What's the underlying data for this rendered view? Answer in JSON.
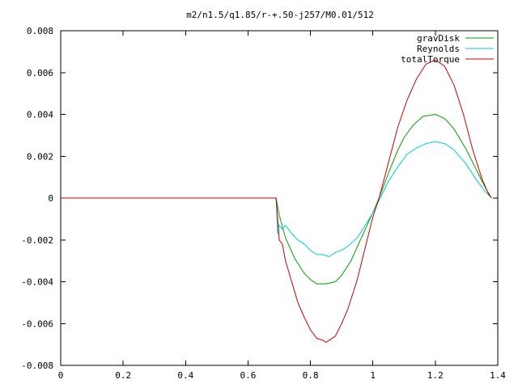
{
  "chart_data": {
    "type": "line",
    "title": "m2/n1.5/q1.85/r-+.50-j257/M0.01/512",
    "xlim": [
      0,
      1.4
    ],
    "ylim": [
      -0.008,
      0.008
    ],
    "xticks": [
      0,
      0.2,
      0.4,
      0.6,
      0.8,
      1,
      1.2,
      1.4
    ],
    "xtick_labels": [
      "0",
      "0.2",
      "0.4",
      "0.6",
      "0.8",
      "1",
      "1.2",
      "1.4"
    ],
    "yticks": [
      -0.008,
      -0.006,
      -0.004,
      -0.002,
      0,
      0.002,
      0.004,
      0.006,
      0.008
    ],
    "ytick_labels": [
      "-0.008",
      "-0.006",
      "-0.004",
      "-0.002",
      "0",
      "0.002",
      "0.004",
      "0.006",
      "0.008"
    ],
    "grid": false,
    "legend": "top-right",
    "series": [
      {
        "name": "gravDisk",
        "color": "#00a000",
        "x": [
          0,
          0.69,
          0.7,
          0.72,
          0.75,
          0.78,
          0.8,
          0.82,
          0.85,
          0.88,
          0.9,
          0.93,
          0.96,
          1.0,
          1.02,
          1.05,
          1.08,
          1.1,
          1.13,
          1.16,
          1.2,
          1.23,
          1.26,
          1.3,
          1.33,
          1.36,
          1.38
        ],
        "y": [
          0,
          0,
          -0.0008,
          -0.0019,
          -0.0029,
          -0.0036,
          -0.0039,
          -0.0041,
          -0.0041,
          -0.004,
          -0.0037,
          -0.003,
          -0.002,
          -0.0007,
          0.0,
          0.0012,
          0.0023,
          0.0029,
          0.0035,
          0.0039,
          0.004,
          0.0038,
          0.0033,
          0.0023,
          0.0014,
          0.0005,
          0.0
        ]
      },
      {
        "name": "Reynolds",
        "color": "#00cccc",
        "x": [
          0,
          0.69,
          0.695,
          0.7,
          0.71,
          0.72,
          0.74,
          0.76,
          0.78,
          0.8,
          0.82,
          0.84,
          0.86,
          0.88,
          0.9,
          0.92,
          0.95,
          0.98,
          1.0,
          1.02,
          1.05,
          1.08,
          1.11,
          1.14,
          1.17,
          1.2,
          1.23,
          1.26,
          1.3,
          1.33,
          1.36,
          1.38
        ],
        "y": [
          0,
          0,
          -0.0017,
          -0.0013,
          -0.0015,
          -0.0013,
          -0.0017,
          -0.002,
          -0.0022,
          -0.0025,
          -0.0027,
          -0.0027,
          -0.0028,
          -0.0026,
          -0.0025,
          -0.0023,
          -0.0019,
          -0.0012,
          -0.0007,
          -0.0001,
          0.0008,
          0.0015,
          0.0021,
          0.0024,
          0.0026,
          0.0027,
          0.0026,
          0.0023,
          0.0016,
          0.0009,
          0.0003,
          0.0
        ]
      },
      {
        "name": "totalTorque",
        "color": "#cc0000",
        "x": [
          0,
          0.69,
          0.695,
          0.7,
          0.71,
          0.72,
          0.74,
          0.76,
          0.78,
          0.8,
          0.82,
          0.84,
          0.85,
          0.86,
          0.88,
          0.9,
          0.92,
          0.95,
          0.98,
          1.0,
          1.02,
          1.05,
          1.08,
          1.11,
          1.14,
          1.17,
          1.2,
          1.23,
          1.26,
          1.29,
          1.32,
          1.35,
          1.37,
          1.38
        ],
        "y": [
          0,
          0,
          -0.001,
          -0.002,
          -0.0022,
          -0.003,
          -0.004,
          -0.005,
          -0.0057,
          -0.0063,
          -0.0067,
          -0.0068,
          -0.0069,
          -0.0068,
          -0.0066,
          -0.006,
          -0.0053,
          -0.0039,
          -0.0021,
          -0.0009,
          0.0,
          0.0017,
          0.0034,
          0.0047,
          0.0057,
          0.0064,
          0.0066,
          0.0063,
          0.0054,
          0.004,
          0.0023,
          0.0009,
          0.0002,
          0.0
        ]
      }
    ]
  }
}
